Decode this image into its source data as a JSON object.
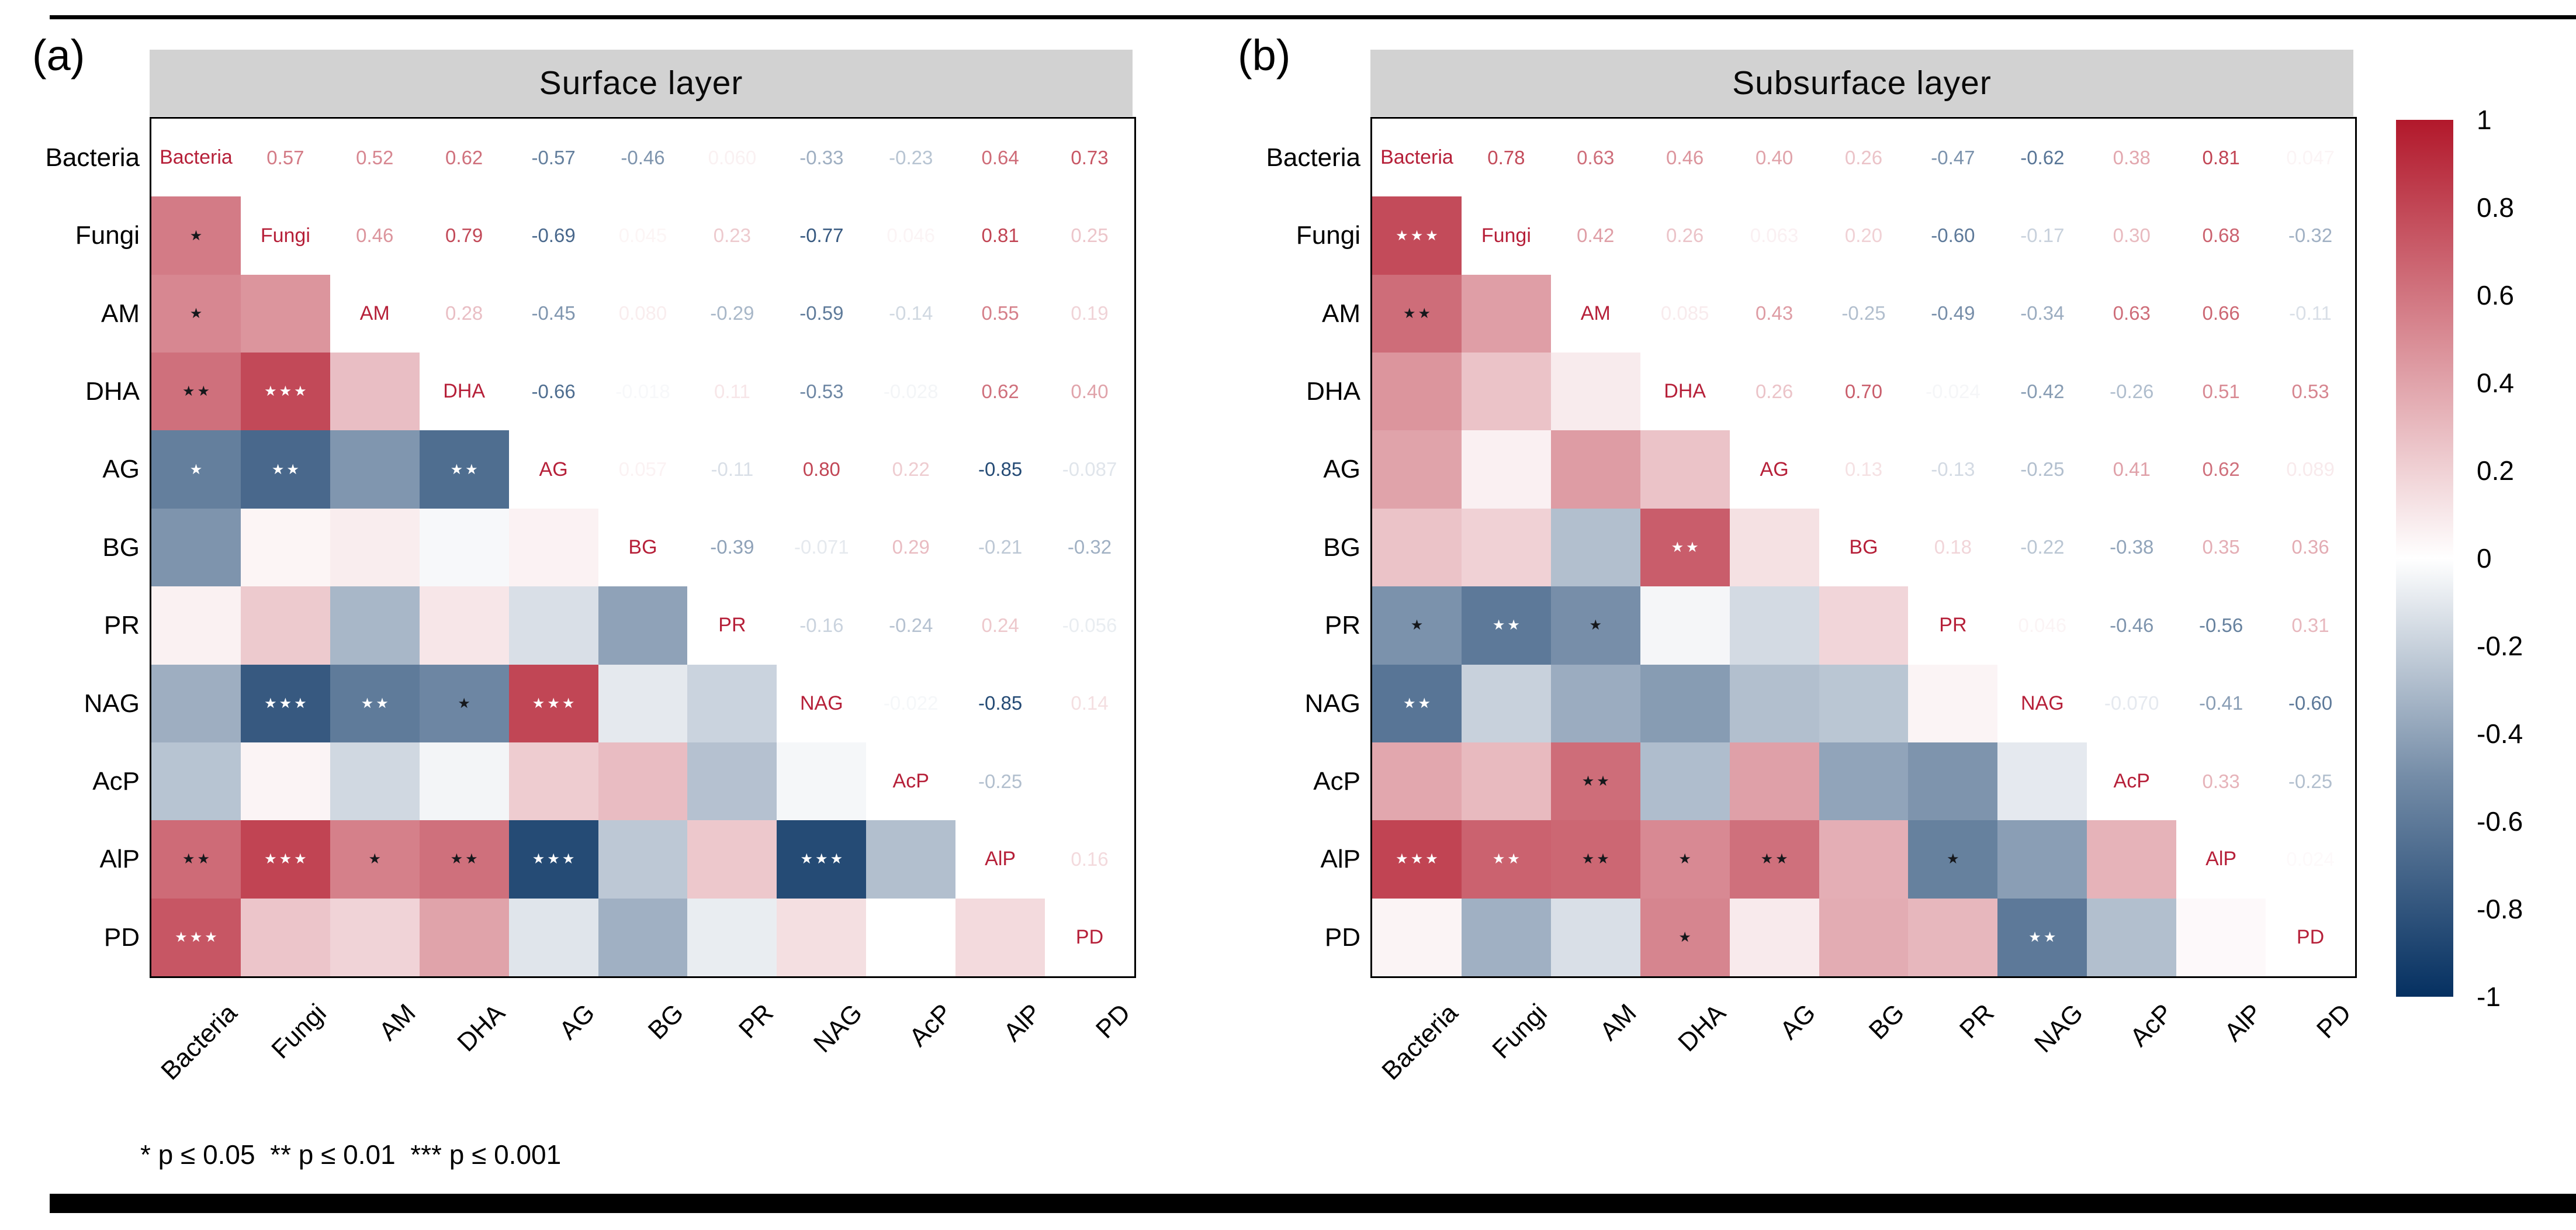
{
  "footnote": "* p ≤ 0.05  ** p ≤ 0.01  *** p ≤ 0.001",
  "colorbar": {
    "ticks": [
      "1",
      "0.8",
      "0.6",
      "0.4",
      "0.2",
      "0",
      "-0.2",
      "-0.4",
      "-0.6",
      "-0.8",
      "-1"
    ],
    "max_color": "#B2182B",
    "mid_color": "#FFFFFF",
    "min_color": "#053061"
  },
  "chart_data": [
    {
      "type": "heatmap",
      "panel_label": "(a)",
      "title": "Surface layer",
      "legend": "upper triangle: Pearson correlation values; lower triangle: color-coded correlation with significance stars",
      "variables": [
        "Bacteria",
        "Fungi",
        "AM",
        "DHA",
        "AG",
        "BG",
        "PR",
        "NAG",
        "AcP",
        "AlP",
        "PD"
      ],
      "values": [
        [
          "",
          "0.57",
          "0.52",
          "0.62",
          "-0.57",
          "-0.46",
          "0.060",
          "-0.33",
          "-0.23",
          "0.64",
          "0.73"
        ],
        [
          "",
          "",
          "0.46",
          "0.79",
          "-0.69",
          "0.045",
          "0.23",
          "-0.77",
          "0.046",
          "0.81",
          "0.25"
        ],
        [
          "",
          "",
          "",
          "0.28",
          "-0.45",
          "0.080",
          "-0.29",
          "-0.59",
          "-0.14",
          "0.55",
          "0.19"
        ],
        [
          "",
          "",
          "",
          "",
          "-0.66",
          "-0.018",
          "0.11",
          "-0.53",
          "-0.028",
          "0.62",
          "0.40"
        ],
        [
          "",
          "",
          "",
          "",
          "",
          "0.057",
          "-0.11",
          "0.80",
          "0.22",
          "-0.85",
          "-0.087"
        ],
        [
          "",
          "",
          "",
          "",
          "",
          "",
          "-0.39",
          "-0.071",
          "0.29",
          "-0.21",
          "-0.32"
        ],
        [
          "",
          "",
          "",
          "",
          "",
          "",
          "",
          "-0.16",
          "-0.24",
          "0.24",
          "-0.056"
        ],
        [
          "",
          "",
          "",
          "",
          "",
          "",
          "",
          "",
          "-0.022",
          "-0.85",
          "0.14"
        ],
        [
          "",
          "",
          "",
          "",
          "",
          "",
          "",
          "",
          "",
          "-0.25",
          ""
        ],
        [
          "",
          "",
          "",
          "",
          "",
          "",
          "",
          "",
          "",
          "",
          "0.16"
        ],
        [
          "",
          "",
          "",
          "",
          "",
          "",
          "",
          "",
          "",
          "",
          ""
        ]
      ],
      "significance": [
        [
          "",
          "",
          "",
          "",
          "",
          "",
          "",
          "",
          "",
          "",
          ""
        ],
        [
          "*",
          "",
          "",
          "",
          "",
          "",
          "",
          "",
          "",
          "",
          ""
        ],
        [
          "*",
          "",
          "",
          "",
          "",
          "",
          "",
          "",
          "",
          "",
          ""
        ],
        [
          "**",
          "***",
          "",
          "",
          "",
          "",
          "",
          "",
          "",
          "",
          ""
        ],
        [
          "*",
          "**",
          "",
          "**",
          "",
          "",
          "",
          "",
          "",
          "",
          ""
        ],
        [
          "",
          "",
          "",
          "",
          "",
          "",
          "",
          "",
          "",
          "",
          ""
        ],
        [
          "",
          "",
          "",
          "",
          "",
          "",
          "",
          "",
          "",
          "",
          ""
        ],
        [
          "",
          "***",
          "**",
          "*",
          "***",
          "",
          "",
          "",
          "",
          "",
          ""
        ],
        [
          "",
          "",
          "",
          "",
          "",
          "",
          "",
          "",
          "",
          "",
          ""
        ],
        [
          "**",
          "***",
          "*",
          "**",
          "***",
          "",
          "",
          "***",
          "",
          "",
          ""
        ],
        [
          "***",
          "",
          "",
          "",
          "",
          "",
          "",
          "",
          "",
          "",
          ""
        ]
      ]
    },
    {
      "type": "heatmap",
      "panel_label": "(b)",
      "title": "Subsurface layer",
      "legend": "upper triangle: Pearson correlation values; lower triangle: color-coded correlation with significance stars",
      "variables": [
        "Bacteria",
        "Fungi",
        "AM",
        "DHA",
        "AG",
        "BG",
        "PR",
        "NAG",
        "AcP",
        "AlP",
        "PD"
      ],
      "values": [
        [
          "",
          "0.78",
          "0.63",
          "0.46",
          "0.40",
          "0.26",
          "-0.47",
          "-0.62",
          "0.38",
          "0.81",
          "0.047"
        ],
        [
          "",
          "",
          "0.42",
          "0.26",
          "0.063",
          "0.20",
          "-0.60",
          "-0.17",
          "0.30",
          "0.68",
          "-0.32"
        ],
        [
          "",
          "",
          "",
          "0.085",
          "0.43",
          "-0.25",
          "-0.49",
          "-0.34",
          "0.63",
          "0.66",
          "-0.11"
        ],
        [
          "",
          "",
          "",
          "",
          "0.26",
          "0.70",
          "-0.024",
          "-0.42",
          "-0.26",
          "0.51",
          "0.53"
        ],
        [
          "",
          "",
          "",
          "",
          "",
          "0.13",
          "-0.13",
          "-0.25",
          "0.41",
          "0.62",
          "0.089"
        ],
        [
          "",
          "",
          "",
          "",
          "",
          "",
          "0.18",
          "-0.22",
          "-0.38",
          "0.35",
          "0.36"
        ],
        [
          "",
          "",
          "",
          "",
          "",
          "",
          "",
          "0.046",
          "-0.46",
          "-0.56",
          "0.31"
        ],
        [
          "",
          "",
          "",
          "",
          "",
          "",
          "",
          "",
          "-0.070",
          "-0.41",
          "-0.60"
        ],
        [
          "",
          "",
          "",
          "",
          "",
          "",
          "",
          "",
          "",
          "0.33",
          "-0.25"
        ],
        [
          "",
          "",
          "",
          "",
          "",
          "",
          "",
          "",
          "",
          "",
          "0.024"
        ],
        [
          "",
          "",
          "",
          "",
          "",
          "",
          "",
          "",
          "",
          "",
          ""
        ]
      ],
      "significance": [
        [
          "",
          "",
          "",
          "",
          "",
          "",
          "",
          "",
          "",
          "",
          ""
        ],
        [
          "***",
          "",
          "",
          "",
          "",
          "",
          "",
          "",
          "",
          "",
          ""
        ],
        [
          "**",
          "",
          "",
          "",
          "",
          "",
          "",
          "",
          "",
          "",
          ""
        ],
        [
          "",
          "",
          "",
          "",
          "",
          "",
          "",
          "",
          "",
          "",
          ""
        ],
        [
          "",
          "",
          "",
          "",
          "",
          "",
          "",
          "",
          "",
          "",
          ""
        ],
        [
          "",
          "",
          "",
          "**",
          "",
          "",
          "",
          "",
          "",
          "",
          ""
        ],
        [
          "*",
          "**",
          "*",
          "",
          "",
          "",
          "",
          "",
          "",
          "",
          ""
        ],
        [
          "**",
          "",
          "",
          "",
          "",
          "",
          "",
          "",
          "",
          "",
          ""
        ],
        [
          "",
          "",
          "**",
          "",
          "",
          "",
          "",
          "",
          "",
          "",
          ""
        ],
        [
          "***",
          "**",
          "**",
          "*",
          "**",
          "",
          "*",
          "",
          "",
          "",
          ""
        ],
        [
          "",
          "",
          "",
          "*",
          "",
          "",
          "",
          "**",
          "",
          "",
          ""
        ]
      ]
    }
  ]
}
